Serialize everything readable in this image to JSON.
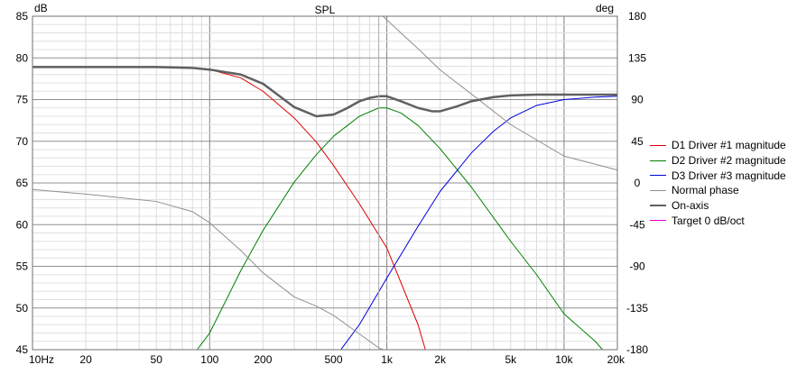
{
  "chart_data": {
    "type": "line",
    "title": "SPL",
    "ylabel_left": "dB",
    "ylabel_right": "deg",
    "x_scale": "log",
    "xlim": [
      10,
      20000
    ],
    "ylim_left": [
      45,
      85
    ],
    "ylim_right": [
      -180,
      180
    ],
    "grid": true,
    "legend_position": "right",
    "x_ticks": [
      {
        "value": 10,
        "label": "10Hz"
      },
      {
        "value": 20,
        "label": "20"
      },
      {
        "value": 50,
        "label": "50"
      },
      {
        "value": 100,
        "label": "100"
      },
      {
        "value": 200,
        "label": "200"
      },
      {
        "value": 500,
        "label": "500"
      },
      {
        "value": 1000,
        "label": "1k"
      },
      {
        "value": 2000,
        "label": "2k"
      },
      {
        "value": 5000,
        "label": "5k"
      },
      {
        "value": 10000,
        "label": "10k"
      },
      {
        "value": 20000,
        "label": "20k"
      }
    ],
    "y_ticks_left": [
      "45",
      "50",
      "55",
      "60",
      "65",
      "70",
      "75",
      "80",
      "85"
    ],
    "y_ticks_right": [
      "-180",
      "-135",
      "-90",
      "-45",
      "0",
      "45",
      "90",
      "135",
      "180"
    ],
    "marker_frequency": 900,
    "series": [
      {
        "name": "D1 Driver #1 magnitude",
        "color": "#e00000",
        "axis": "left",
        "x": [
          10,
          20,
          50,
          80,
          100,
          150,
          200,
          300,
          400,
          500,
          700,
          1000,
          1500,
          1650
        ],
        "y": [
          78.9,
          78.9,
          78.9,
          78.8,
          78.6,
          77.6,
          76.0,
          72.8,
          69.9,
          67.1,
          62.5,
          57.2,
          48.0,
          45.0
        ]
      },
      {
        "name": "D2 Driver #2 magnitude",
        "color": "#008000",
        "axis": "left",
        "x": [
          85,
          100,
          150,
          200,
          300,
          400,
          500,
          700,
          900,
          1000,
          1200,
          1500,
          2000,
          3000,
          5000,
          7000,
          10000,
          15000,
          16500
        ],
        "y": [
          45,
          47.0,
          54.5,
          59.3,
          65.1,
          68.4,
          70.6,
          73.0,
          74.0,
          74.0,
          73.4,
          71.9,
          69.1,
          64.5,
          58.0,
          54.0,
          49.3,
          46.0,
          45.0
        ]
      },
      {
        "name": "D3 Driver #3 magnitude",
        "color": "#0000e0",
        "axis": "left",
        "x": [
          550,
          700,
          1000,
          1500,
          2000,
          3000,
          4000,
          5000,
          7000,
          10000,
          15000,
          20000
        ],
        "y": [
          45,
          48.0,
          53.6,
          59.8,
          64.0,
          68.6,
          71.2,
          72.8,
          74.3,
          75.0,
          75.3,
          75.4
        ]
      },
      {
        "name": "Normal phase",
        "color": "#909090",
        "axis": "right",
        "x_segments": [
          [
            10,
            20,
            50,
            80,
            100,
            150,
            200,
            300,
            400,
            500,
            700,
            900,
            950
          ],
          [
            950,
            1200,
            1500,
            2000,
            3000,
            5000,
            10000,
            20000
          ]
        ],
        "y_segments": [
          [
            -7,
            -12,
            -20,
            -31,
            -43,
            -73,
            -97,
            -123,
            -133,
            -143,
            -163,
            -178,
            -180
          ],
          [
            180,
            162,
            145,
            122,
            96,
            63,
            29,
            14
          ]
        ]
      },
      {
        "name": "On-axis",
        "color": "#606060",
        "axis": "left",
        "thick": true,
        "x": [
          10,
          20,
          50,
          80,
          100,
          150,
          200,
          300,
          400,
          500,
          600,
          700,
          800,
          900,
          1000,
          1200,
          1500,
          1800,
          2000,
          2500,
          3000,
          4000,
          5000,
          7000,
          10000,
          20000
        ],
        "y": [
          78.9,
          78.9,
          78.9,
          78.8,
          78.6,
          78.0,
          76.9,
          74.1,
          73.0,
          73.2,
          74.0,
          74.8,
          75.2,
          75.4,
          75.4,
          74.8,
          74.0,
          73.6,
          73.6,
          74.2,
          74.8,
          75.3,
          75.5,
          75.6,
          75.6,
          75.6
        ]
      },
      {
        "name": "Target 0 dB/oct",
        "color": "#e000e0",
        "axis": "left"
      }
    ]
  }
}
